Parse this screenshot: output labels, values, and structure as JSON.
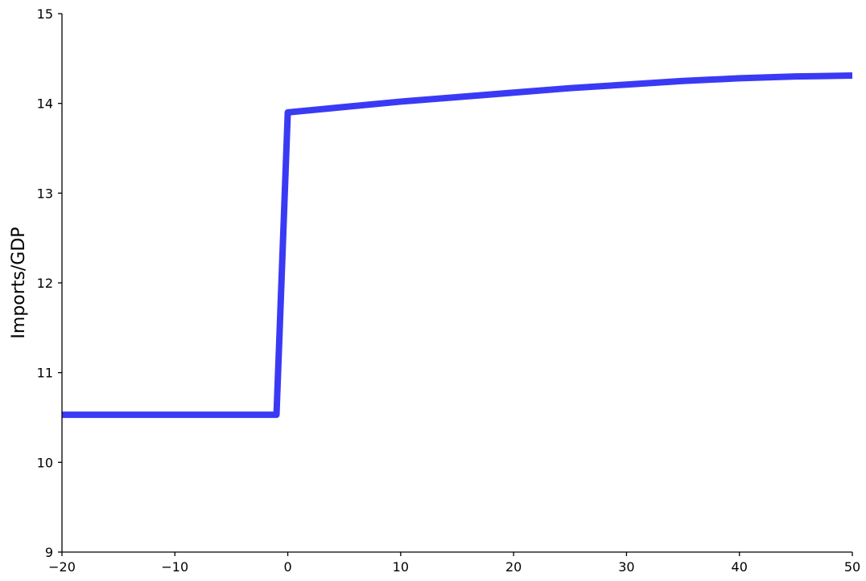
{
  "chart_data": {
    "type": "line",
    "title": "",
    "xlabel": "",
    "ylabel": "Imports/GDP",
    "xlim": [
      -20,
      50
    ],
    "ylim": [
      9,
      15
    ],
    "xticks": [
      -20,
      -10,
      0,
      10,
      20,
      30,
      40,
      50
    ],
    "xtick_labels": [
      "−20",
      "−10",
      "0",
      "10",
      "20",
      "30",
      "40",
      "50"
    ],
    "yticks": [
      9,
      10,
      11,
      12,
      13,
      14,
      15
    ],
    "ytick_labels": [
      "9",
      "10",
      "11",
      "12",
      "13",
      "14",
      "15"
    ],
    "grid": false,
    "legend": "none",
    "series": [
      {
        "color": "#3a3af5",
        "x": [
          -20,
          -1,
          0,
          5,
          10,
          15,
          20,
          25,
          30,
          35,
          40,
          45,
          50
        ],
        "y": [
          10.53,
          10.53,
          13.9,
          13.96,
          14.02,
          14.07,
          14.12,
          14.17,
          14.21,
          14.25,
          14.28,
          14.3,
          14.31
        ]
      }
    ]
  }
}
